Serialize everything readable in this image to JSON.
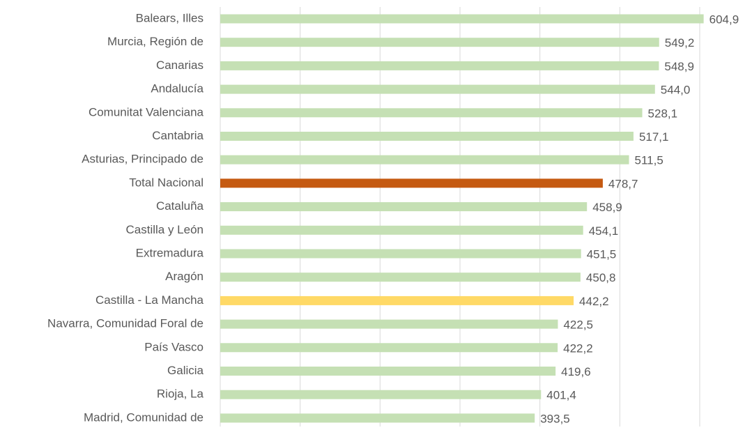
{
  "chart_data": {
    "type": "barh",
    "categories": [
      "Balears, Illes",
      "Murcia, Región de",
      "Canarias",
      "Andalucía",
      "Comunitat Valenciana",
      "Cantabria",
      "Asturias, Principado de",
      "Total Nacional",
      "Cataluña",
      "Castilla y León",
      "Extremadura",
      "Aragón",
      "Castilla - La Mancha",
      "Navarra, Comunidad Foral de",
      "País Vasco",
      "Galicia",
      "Rioja, La",
      "Madrid, Comunidad de"
    ],
    "values": [
      604.9,
      549.2,
      548.9,
      544.0,
      528.1,
      517.1,
      511.5,
      478.7,
      458.9,
      454.1,
      451.5,
      450.8,
      442.2,
      422.5,
      422.2,
      419.6,
      401.4,
      393.5
    ],
    "value_labels": [
      "604,9",
      "549,2",
      "548,9",
      "544,0",
      "528,1",
      "517,1",
      "511,5",
      "478,7",
      "458,9",
      "454,1",
      "451,5",
      "450,8",
      "442,2",
      "422,5",
      "422,2",
      "419,6",
      "401,4",
      "393,5"
    ],
    "colors": [
      "#c5e0b4",
      "#c5e0b4",
      "#c5e0b4",
      "#c5e0b4",
      "#c5e0b4",
      "#c5e0b4",
      "#c5e0b4",
      "#c55a11",
      "#c5e0b4",
      "#c5e0b4",
      "#c5e0b4",
      "#c5e0b4",
      "#ffd966",
      "#c5e0b4",
      "#c5e0b4",
      "#c5e0b4",
      "#c5e0b4",
      "#c5e0b4"
    ],
    "xlim": [
      0,
      600
    ],
    "xticks": [
      0,
      100,
      200,
      300,
      400,
      500,
      600
    ],
    "grid": true
  }
}
